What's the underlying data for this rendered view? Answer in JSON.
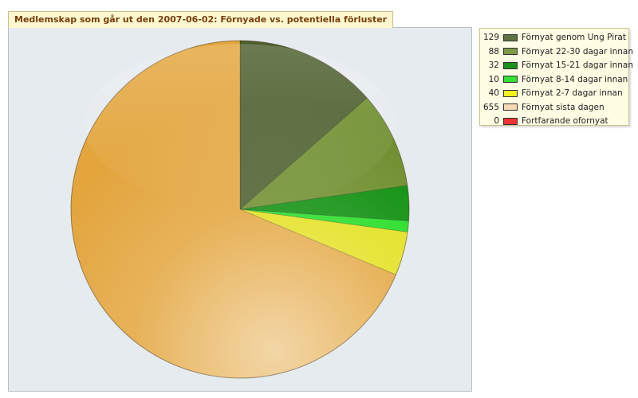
{
  "title": "Medlemskap som går ut den 2007-06-02: Förnyade vs. potentiella förluster",
  "chart_data": {
    "type": "pie",
    "title": "Medlemskap som går ut den 2007-06-02: Förnyade vs. potentiella förluster",
    "legend_position": "right",
    "slices": [
      {
        "label": "Förnyat genom Ung Pirat",
        "value": 129,
        "color": "#4b5e2c"
      },
      {
        "label": "Förnyat 22-30 dagar innan",
        "value": 88,
        "color": "#6d8d2c"
      },
      {
        "label": "Förnyat 15-21 dagar innan",
        "value": 32,
        "color": "#0b8e0b"
      },
      {
        "label": "Förnyat 8-14 dagar innan",
        "value": 10,
        "color": "#22dd22"
      },
      {
        "label": "Förnyat 2-7 dagar innan",
        "value": 40,
        "color": "#e3e01a"
      },
      {
        "label": "Förnyat sista dagen",
        "value": 655,
        "color": "#e3a53c"
      },
      {
        "label": "Fortfarande ofornyat",
        "value": 0,
        "color": "#ee2222"
      }
    ]
  },
  "legend": {
    "items": [
      {
        "count": "129",
        "label": "Förnyat genom Ung Pirat",
        "color": "#5e7242"
      },
      {
        "count": "88",
        "label": "Förnyat 22-30 dagar innan",
        "color": "#7f9a44"
      },
      {
        "count": "32",
        "label": "Förnyat 15-21 dagar innan",
        "color": "#1c8e1c"
      },
      {
        "count": "10",
        "label": "Förnyat 8-14 dagar innan",
        "color": "#33e033"
      },
      {
        "count": "40",
        "label": "Förnyat 2-7 dagar innan",
        "color": "#f2f21e"
      },
      {
        "count": "655",
        "label": "Förnyat sista dagen",
        "color": "#f6d9b5"
      },
      {
        "count": "0",
        "label": "Fortfarande ofornyat",
        "color": "#f03232"
      }
    ]
  }
}
